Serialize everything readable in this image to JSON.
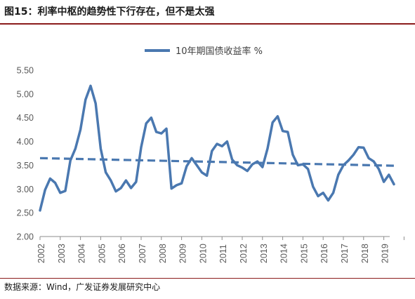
{
  "figure": {
    "title": "图15：利率中枢的趋势性下行存在，但不是太强",
    "source": "数据来源：Wind，广发证券发展研究中心"
  },
  "chart_data": {
    "type": "line",
    "title": "",
    "xlabel": "",
    "ylabel": "",
    "ylim": [
      2.0,
      5.5
    ],
    "yticks": [
      "2.00",
      "2.50",
      "3.00",
      "3.50",
      "4.00",
      "4.50",
      "5.00",
      "5.50"
    ],
    "xticks": [
      "2002",
      "2003",
      "2004",
      "2005",
      "2006",
      "2007",
      "2008",
      "2009",
      "2010",
      "2011",
      "2012",
      "2013",
      "2014",
      "2015",
      "2016",
      "2017",
      "2018",
      "2019"
    ],
    "legend": {
      "position": "top-center"
    },
    "grid": false,
    "series": [
      {
        "name": "10年期国债收益率 %",
        "color": "#4a78b0",
        "style": "solid",
        "x": [
          "2002-01",
          "2002-04",
          "2002-07",
          "2002-10",
          "2003-01",
          "2003-04",
          "2003-07",
          "2003-10",
          "2004-01",
          "2004-04",
          "2004-07",
          "2004-10",
          "2005-01",
          "2005-04",
          "2005-07",
          "2005-10",
          "2006-01",
          "2006-04",
          "2006-07",
          "2006-10",
          "2007-01",
          "2007-04",
          "2007-07",
          "2007-10",
          "2008-01",
          "2008-04",
          "2008-07",
          "2008-10",
          "2009-01",
          "2009-04",
          "2009-07",
          "2009-10",
          "2010-01",
          "2010-04",
          "2010-07",
          "2010-10",
          "2011-01",
          "2011-04",
          "2011-07",
          "2011-10",
          "2012-01",
          "2012-04",
          "2012-07",
          "2012-10",
          "2013-01",
          "2013-04",
          "2013-07",
          "2013-10",
          "2014-01",
          "2014-04",
          "2014-07",
          "2014-10",
          "2015-01",
          "2015-04",
          "2015-07",
          "2015-10",
          "2016-01",
          "2016-04",
          "2016-07",
          "2016-10",
          "2017-01",
          "2017-04",
          "2017-07",
          "2017-10",
          "2018-01",
          "2018-04",
          "2018-07",
          "2018-10",
          "2019-01",
          "2019-04",
          "2019-07"
        ],
        "values": [
          2.55,
          2.98,
          3.22,
          3.13,
          2.92,
          2.96,
          3.6,
          3.85,
          4.25,
          4.88,
          5.17,
          4.8,
          3.85,
          3.35,
          3.18,
          2.95,
          3.02,
          3.18,
          3.02,
          3.15,
          3.88,
          4.38,
          4.5,
          4.2,
          4.17,
          4.27,
          3.01,
          3.08,
          3.12,
          3.48,
          3.65,
          3.5,
          3.35,
          3.28,
          3.8,
          3.95,
          3.9,
          4.0,
          3.62,
          3.5,
          3.45,
          3.38,
          3.52,
          3.58,
          3.46,
          3.85,
          4.4,
          4.53,
          4.22,
          4.2,
          3.72,
          3.5,
          3.52,
          3.42,
          3.05,
          2.85,
          2.92,
          2.76,
          2.92,
          3.3,
          3.5,
          3.6,
          3.72,
          3.88,
          3.87,
          3.65,
          3.58,
          3.42,
          3.15,
          3.3,
          3.1
        ]
      },
      {
        "name": "",
        "color": "#4a78b0",
        "style": "dashed",
        "x": [
          "2002-01",
          "2019-07"
        ],
        "values": [
          3.65,
          3.49
        ]
      }
    ]
  }
}
